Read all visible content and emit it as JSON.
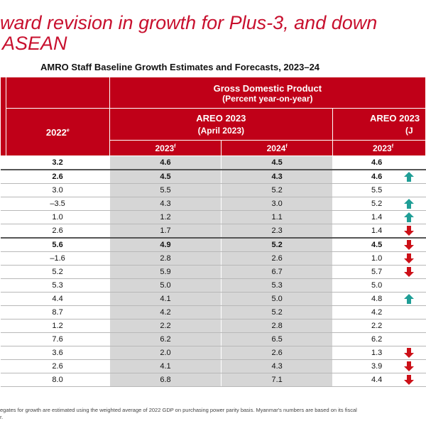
{
  "title_line1": "ward revision in growth for Plus-3, and down",
  "title_line2": "ASEAN",
  "subtitle": "AMRO Staff Baseline Growth Estimates and Forecasts, 2023–24",
  "header": {
    "gdp_title": "Gross Domestic Product",
    "gdp_sub": "(Percent year-on-year)",
    "col_2022": "2022",
    "col_2022_sup": "e",
    "areo_april": "AREO 2023",
    "areo_april_sub": "(April 2023)",
    "areo_july": "AREO 2023",
    "areo_july_sub": "(J",
    "y2023": "2023",
    "y2024": "2024",
    "y_sup": "f"
  },
  "rows": [
    {
      "v2022": "3.2",
      "apr2023": "4.6",
      "apr2024": "4.5",
      "jul2023": "4.6",
      "arrow": "none",
      "bold": true
    },
    {
      "v2022": "2.6",
      "apr2023": "4.5",
      "apr2024": "4.3",
      "jul2023": "4.6",
      "arrow": "up",
      "bold": true
    },
    {
      "v2022": "3.0",
      "apr2023": "5.5",
      "apr2024": "5.2",
      "jul2023": "5.5",
      "arrow": "none",
      "bold": false
    },
    {
      "v2022": "–3.5",
      "apr2023": "4.3",
      "apr2024": "3.0",
      "jul2023": "5.2",
      "arrow": "up",
      "bold": false
    },
    {
      "v2022": "1.0",
      "apr2023": "1.2",
      "apr2024": "1.1",
      "jul2023": "1.4",
      "arrow": "up",
      "bold": false
    },
    {
      "v2022": "2.6",
      "apr2023": "1.7",
      "apr2024": "2.3",
      "jul2023": "1.4",
      "arrow": "down",
      "bold": false
    },
    {
      "v2022": "5.6",
      "apr2023": "4.9",
      "apr2024": "5.2",
      "jul2023": "4.5",
      "arrow": "down",
      "bold": true
    },
    {
      "v2022": "–1.6",
      "apr2023": "2.8",
      "apr2024": "2.6",
      "jul2023": "1.0",
      "arrow": "down",
      "bold": false
    },
    {
      "v2022": "5.2",
      "apr2023": "5.9",
      "apr2024": "6.7",
      "jul2023": "5.7",
      "arrow": "down",
      "bold": false
    },
    {
      "v2022": "5.3",
      "apr2023": "5.0",
      "apr2024": "5.3",
      "jul2023": "5.0",
      "arrow": "none",
      "bold": false
    },
    {
      "v2022": "4.4",
      "apr2023": "4.1",
      "apr2024": "5.0",
      "jul2023": "4.8",
      "arrow": "up",
      "bold": false
    },
    {
      "v2022": "8.7",
      "apr2023": "4.2",
      "apr2024": "5.2",
      "jul2023": "4.2",
      "arrow": "none",
      "bold": false
    },
    {
      "v2022": "1.2",
      "apr2023": "2.2",
      "apr2024": "2.8",
      "jul2023": "2.2",
      "arrow": "none",
      "bold": false
    },
    {
      "v2022": "7.6",
      "apr2023": "6.2",
      "apr2024": "6.5",
      "jul2023": "6.2",
      "arrow": "none",
      "bold": false
    },
    {
      "v2022": "3.6",
      "apr2023": "2.0",
      "apr2024": "2.6",
      "jul2023": "1.3",
      "arrow": "down",
      "bold": false
    },
    {
      "v2022": "2.6",
      "apr2023": "4.1",
      "apr2024": "4.3",
      "jul2023": "3.9",
      "arrow": "down",
      "bold": false
    },
    {
      "v2022": "8.0",
      "apr2023": "6.8",
      "apr2024": "7.1",
      "jul2023": "4.4",
      "arrow": "down",
      "bold": false
    }
  ],
  "footnote_line1": "egates for growth are estimated using the weighted average of 2022 GDP on purchasing power parity basis. Myanmar's numbers are based on its fiscal",
  "footnote_line2": "r.",
  "colors": {
    "title_red": "#c8102e",
    "header_red": "#c00018",
    "cell_gray": "#d6d6d6",
    "up_teal": "#1f9e96",
    "down_red": "#cc1018"
  }
}
